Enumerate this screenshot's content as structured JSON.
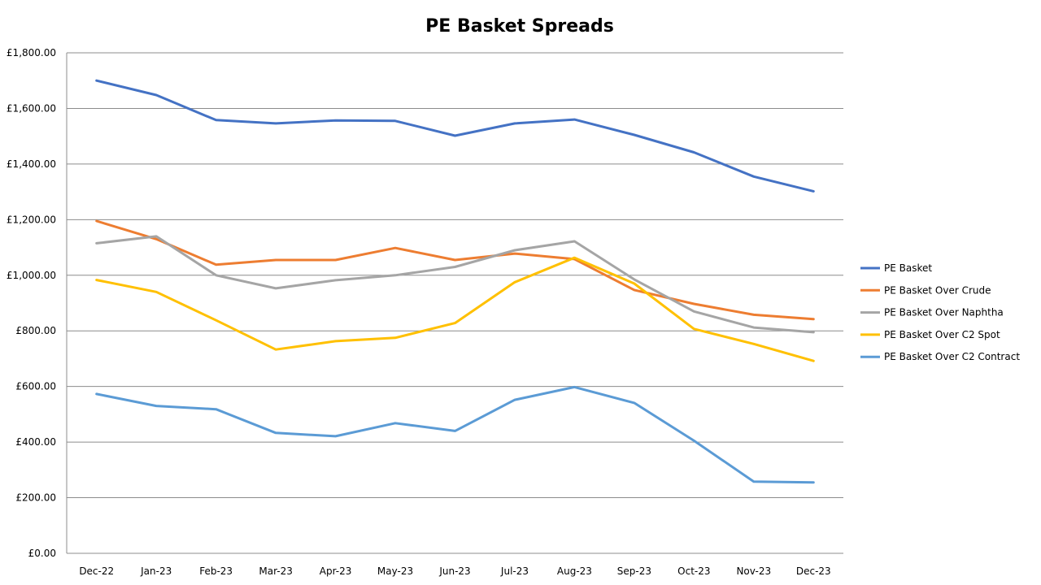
{
  "chart_data": {
    "type": "line",
    "title": "PE Basket Spreads",
    "xlabel": "",
    "ylabel": "",
    "categories": [
      "Dec-22",
      "Jan-23",
      "Feb-23",
      "Mar-23",
      "Apr-23",
      "May-23",
      "Jun-23",
      "Jul-23",
      "Aug-23",
      "Sep-23",
      "Oct-23",
      "Nov-23",
      "Dec-23"
    ],
    "ylim": [
      0,
      1800
    ],
    "yticks": [
      0,
      200,
      400,
      600,
      800,
      1000,
      1200,
      1400,
      1600,
      1800
    ],
    "ytick_labels": [
      "£0.00",
      "£200.00",
      "£400.00",
      "£600.00",
      "£800.00",
      "£1,000.00",
      "£1,200.00",
      "£1,400.00",
      "£1,600.00",
      "£1,800.00"
    ],
    "grid": true,
    "legend_position": "right",
    "series": [
      {
        "name": "PE Basket",
        "color": "#4472c4",
        "values": [
          1700,
          1648,
          1558,
          1546,
          1557,
          1555,
          1502,
          1546,
          1560,
          1505,
          1442,
          1355,
          1302
        ]
      },
      {
        "name": "PE Basket Over Crude",
        "color": "#ed7d31",
        "values": [
          1195,
          1130,
          1038,
          1055,
          1055,
          1098,
          1055,
          1078,
          1058,
          947,
          897,
          858,
          842
        ]
      },
      {
        "name": "PE Basket Over Naphtha",
        "color": "#a5a5a5",
        "values": [
          1115,
          1140,
          1000,
          953,
          982,
          1000,
          1030,
          1090,
          1122,
          985,
          870,
          812,
          795
        ]
      },
      {
        "name": "PE Basket Over C2 Spot",
        "color": "#ffc000",
        "values": [
          983,
          940,
          838,
          733,
          763,
          775,
          828,
          975,
          1063,
          970,
          807,
          753,
          692
        ]
      },
      {
        "name": "PE Basket Over C2 Contract",
        "color": "#5b9bd5",
        "values": [
          573,
          530,
          518,
          433,
          421,
          468,
          440,
          552,
          598,
          541,
          405,
          258,
          255
        ]
      }
    ]
  }
}
